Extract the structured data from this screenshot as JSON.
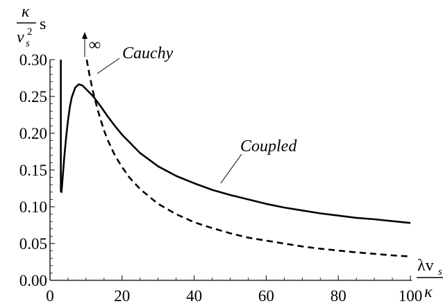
{
  "chart_data": {
    "type": "line",
    "title": "",
    "xlabel": {
      "main": "λv",
      "sub": "s",
      "denominator": "κ"
    },
    "ylabel": {
      "numerator": "κ",
      "denominator_base": "v",
      "denominator_sub": "s",
      "denominator_sup": "2",
      "unit": "s"
    },
    "xlim": [
      0,
      100
    ],
    "ylim": [
      0,
      0.3
    ],
    "x_ticks": [
      0,
      20,
      40,
      60,
      80,
      100
    ],
    "x_tick_labels": [
      "0",
      "20",
      "40",
      "60",
      "80",
      "100"
    ],
    "y_ticks": [
      0,
      0.05,
      0.1,
      0.15,
      0.2,
      0.25,
      0.3
    ],
    "y_tick_labels": [
      "0.00",
      "0.05",
      "0.10",
      "0.15",
      "0.20",
      "0.25",
      "0.30"
    ],
    "grid": false,
    "series": [
      {
        "name": "Coupled",
        "style": "solid",
        "color": "#000000",
        "x": [
          3,
          3,
          3,
          3.2,
          3.6,
          4,
          4.5,
          5,
          5.5,
          6,
          7,
          8,
          9,
          10,
          11,
          12,
          14,
          16,
          18,
          20,
          25,
          30,
          35,
          40,
          45,
          50,
          55,
          60,
          65,
          70,
          75,
          80,
          85,
          90,
          95,
          100
        ],
        "y": [
          0.3,
          0.16,
          0.121,
          0.12,
          0.145,
          0.17,
          0.196,
          0.218,
          0.235,
          0.248,
          0.262,
          0.2665,
          0.265,
          0.26,
          0.255,
          0.25,
          0.237,
          0.223,
          0.21,
          0.198,
          0.173,
          0.155,
          0.142,
          0.132,
          0.123,
          0.116,
          0.11,
          0.104,
          0.099,
          0.095,
          0.091,
          0.088,
          0.085,
          0.083,
          0.0805,
          0.078
        ]
      },
      {
        "name": "Cauchy",
        "style": "dashed",
        "color": "#000000",
        "x": [
          10.2,
          11,
          12,
          13,
          14,
          15,
          16,
          18,
          20,
          22,
          25,
          30,
          35,
          40,
          45,
          50,
          55,
          60,
          65,
          70,
          75,
          80,
          85,
          90,
          95,
          100
        ],
        "y": [
          0.3,
          0.278,
          0.255,
          0.236,
          0.219,
          0.204,
          0.191,
          0.17,
          0.154,
          0.14,
          0.124,
          0.104,
          0.09,
          0.079,
          0.071,
          0.064,
          0.058,
          0.054,
          0.05,
          0.046,
          0.043,
          0.0405,
          0.038,
          0.036,
          0.034,
          0.0325
        ]
      }
    ],
    "annotations": [
      {
        "text": "Cauchy",
        "series": "Cauchy"
      },
      {
        "text": "Coupled",
        "series": "Coupled"
      },
      {
        "text": "∞",
        "meaning": "arrow indicating Cauchy curve diverges to infinity"
      }
    ]
  }
}
